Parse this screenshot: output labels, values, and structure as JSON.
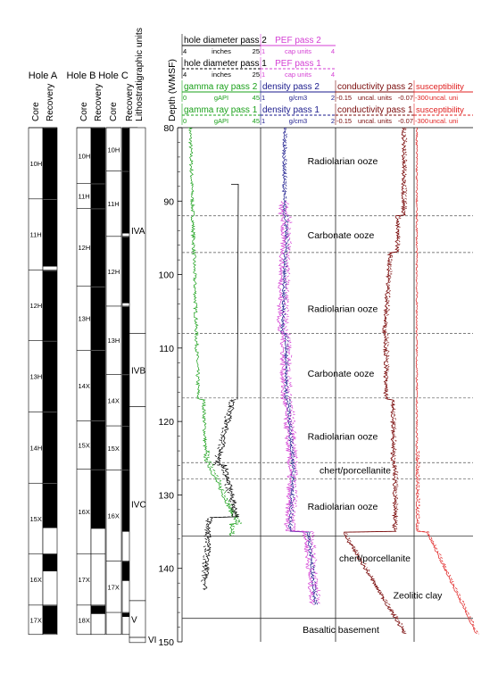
{
  "holes": [
    {
      "name": "Hole A",
      "cores": [
        {
          "label": "10H",
          "top": 80.0,
          "bottom": 89.7,
          "rec_end": 89.7
        },
        {
          "label": "11H",
          "top": 89.7,
          "bottom": 99.4,
          "rec_end": 98.9
        },
        {
          "label": "12H",
          "top": 99.4,
          "bottom": 109.0,
          "rec_end": 109.0
        },
        {
          "label": "13H",
          "top": 109.0,
          "bottom": 118.7,
          "rec_end": 118.7
        },
        {
          "label": "14H",
          "top": 118.7,
          "bottom": 128.4,
          "rec_end": 128.4
        },
        {
          "label": "15X",
          "top": 128.4,
          "bottom": 138.0,
          "rec_end": 134.5
        },
        {
          "label": "16X",
          "top": 138.0,
          "bottom": 145.0,
          "rec_end": 140.4
        },
        {
          "label": "17X",
          "top": 145.0,
          "bottom": 149.0,
          "rec_end": 148.9
        }
      ]
    },
    {
      "name": "Hole B",
      "cores": [
        {
          "label": "10H",
          "top": 80.0,
          "bottom": 87.6,
          "rec_end": 87.6
        },
        {
          "label": "11H",
          "top": 87.6,
          "bottom": 91.0,
          "rec_end": 91.0
        },
        {
          "label": "12H",
          "top": 91.0,
          "bottom": 101.6,
          "rec_end": 101.6
        },
        {
          "label": "13H",
          "top": 101.6,
          "bottom": 110.3,
          "rec_end": 110.3
        },
        {
          "label": "14X",
          "top": 110.3,
          "bottom": 119.9,
          "rec_end": 119.9
        },
        {
          "label": "15X",
          "top": 119.9,
          "bottom": 126.5,
          "rec_end": 126.5
        },
        {
          "label": "16X",
          "top": 126.5,
          "bottom": 138.0,
          "rec_end": 134.6
        },
        {
          "label": "17X",
          "top": 138.0,
          "bottom": 145.0,
          "rec_end": 135.4
        },
        {
          "label": "18X",
          "top": 145.0,
          "bottom": 149.0,
          "rec_end": 146.2
        }
      ]
    },
    {
      "name": "Hole C",
      "cores": [
        {
          "label": "10H",
          "top": 80.0,
          "bottom": 85.9,
          "rec_end": 85.9
        },
        {
          "label": "11H",
          "top": 85.9,
          "bottom": 94.8,
          "rec_end": 94.4
        },
        {
          "label": "12H",
          "top": 94.8,
          "bottom": 104.3,
          "rec_end": 103.9
        },
        {
          "label": "13H",
          "top": 104.3,
          "bottom": 113.6,
          "rec_end": 113.6
        },
        {
          "label": "14X",
          "top": 113.6,
          "bottom": 120.6,
          "rec_end": 120.6
        },
        {
          "label": "15X",
          "top": 120.6,
          "bottom": 126.6,
          "rec_end": 126.6
        },
        {
          "label": "16X",
          "top": 126.6,
          "bottom": 139.0,
          "rec_end": 135.0
        },
        {
          "label": "17X",
          "top": 139.0,
          "bottom": 146.0,
          "rec_end": 141.7
        },
        {
          "label": "",
          "top": 146.0,
          "bottom": 149.0,
          "rec_end": 146.6
        }
      ]
    }
  ],
  "column_labels": {
    "core": "Core",
    "recovery": "Recovery"
  },
  "litho_title": "Lithostratigraphic units",
  "units": [
    {
      "label": "IVA",
      "top": 80.0,
      "bottom": 108.0
    },
    {
      "label": "IVB",
      "top": 108.0,
      "bottom": 118.0
    },
    {
      "label": "IVC",
      "top": 118.0,
      "bottom": 144.4
    },
    {
      "label": "V",
      "top": 144.4,
      "bottom": 149.4
    },
    {
      "label": "VI",
      "top": 149.4,
      "bottom": 150.1
    }
  ],
  "depth_axis": {
    "title": "Depth (WMSF)",
    "min": 80,
    "max": 150,
    "ticks": [
      80,
      90,
      100,
      110,
      120,
      130,
      140,
      150
    ]
  },
  "log_headers": [
    {
      "id": "hd2",
      "name": "hole diameter pass 2",
      "min": "4",
      "unit": "inches",
      "max": "25",
      "color": "#000000",
      "dashed": false
    },
    {
      "id": "hd1",
      "name": "hole diameter pass 1",
      "min": "4",
      "unit": "inches",
      "max": "25",
      "color": "#000000",
      "dashed": true
    },
    {
      "id": "gr2",
      "name": "gamma ray pass 2",
      "min": "0",
      "unit": "gAPI",
      "max": "45",
      "color": "#1aa01a",
      "dashed": false
    },
    {
      "id": "gr1",
      "name": "gamma ray pass 1",
      "min": "0",
      "unit": "gAPI",
      "max": "45",
      "color": "#1aa01a",
      "dashed": true
    },
    {
      "id": "pef2",
      "name": "PEF pass 2",
      "min": "1",
      "unit": "cap units",
      "max": "4",
      "color": "#d43fd4",
      "dashed": false
    },
    {
      "id": "pef1",
      "name": "PEF pass 1",
      "min": "1",
      "unit": "cap units",
      "max": "4",
      "color": "#d43fd4",
      "dashed": true
    },
    {
      "id": "den2",
      "name": "density pass 2",
      "min": "1",
      "unit": "g/cm3",
      "max": "2",
      "color": "#1a1a8c",
      "dashed": false
    },
    {
      "id": "den1",
      "name": "density pass 1",
      "min": "1",
      "unit": "g/cm3",
      "max": "2",
      "color": "#1a1a8c",
      "dashed": true
    },
    {
      "id": "cond2",
      "name": "conductivity pass 2",
      "min": "-0.15",
      "unit": "uncal. units",
      "max": "-0.07",
      "color": "#7a0a0a",
      "dashed": false
    },
    {
      "id": "cond1",
      "name": "conductivity pass 1",
      "min": "-0.15",
      "unit": "uncal. units",
      "max": "-0.07",
      "color": "#7a0a0a",
      "dashed": true
    },
    {
      "id": "sus2",
      "name": "susceptibility",
      "min": "-300",
      "unit": "uncal. uni",
      "max": "",
      "color": "#e02020",
      "dashed": false
    },
    {
      "id": "sus1",
      "name": "susceptibility",
      "min": "-300",
      "unit": "uncal. uni",
      "max": "",
      "color": "#e02020",
      "dashed": true
    }
  ],
  "facies": [
    {
      "label": "Radiolarian ooze",
      "depth": 84.5
    },
    {
      "label": "Carbonate ooze",
      "depth": 94.6
    },
    {
      "label": "Radiolarian ooze",
      "depth": 104.6
    },
    {
      "label": "Carbonate ooze",
      "depth": 113.4
    },
    {
      "label": "Radiolarian ooze",
      "depth": 122.0
    },
    {
      "label": "chert/porcellanite",
      "depth": 126.6
    },
    {
      "label": "Radiolarian ooze",
      "depth": 131.5
    },
    {
      "label": "chert/porcellanite",
      "depth": 138.6
    },
    {
      "label": "Zeolitic clay",
      "depth": 143.6
    },
    {
      "label": "Basaltic basement",
      "depth": 148.3
    }
  ],
  "boundaries": [
    {
      "depth": 92.0,
      "style": "dashed"
    },
    {
      "depth": 97.0,
      "style": "dashed"
    },
    {
      "depth": 108.0,
      "style": "dashed"
    },
    {
      "depth": 116.8,
      "style": "dashed"
    },
    {
      "depth": 125.6,
      "style": "dashed"
    },
    {
      "depth": 127.8,
      "style": "dashed"
    },
    {
      "depth": 135.6,
      "style": "solid"
    },
    {
      "depth": 146.8,
      "style": "solid"
    }
  ],
  "colors": {
    "gamma": "#1aa01a",
    "pef": "#d43fd4",
    "density": "#1a1a8c",
    "conductivity": "#7a0a0a",
    "susceptibility": "#e02020",
    "caliper": "#000000",
    "boundary": "#555555"
  }
}
